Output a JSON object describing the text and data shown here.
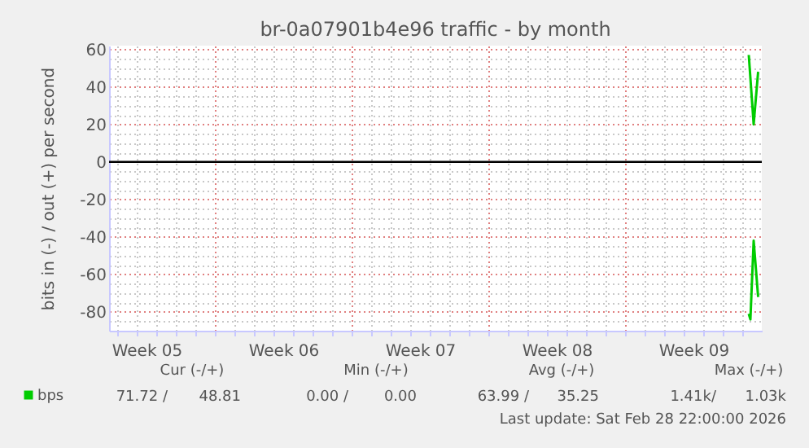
{
  "chart_data": {
    "type": "line",
    "title": "br-0a07901b4e96 traffic - by month",
    "ylabel": "bits in (-) / out (+) per second",
    "xlim": [
      "2026-01-26T12:00",
      "2026-02-28T22:00"
    ],
    "ylim": [
      -90,
      62
    ],
    "xticks": [
      {
        "value": "2026-01-26T22:00",
        "label": null
      },
      {
        "value": "2026-01-27T22:00",
        "label": null
      },
      {
        "value": "2026-01-28T10:00",
        "label": "Week 05"
      },
      {
        "value": "2026-01-28T22:00",
        "label": null
      },
      {
        "value": "2026-01-29T22:00",
        "label": null
      },
      {
        "value": "2026-01-30T22:00",
        "label": null
      },
      {
        "value": "2026-01-31T22:00",
        "label": null
      },
      {
        "value": "2026-02-01T22:00",
        "label": null
      },
      {
        "value": "2026-02-02T22:00",
        "label": null
      },
      {
        "value": "2026-02-03T22:00",
        "label": null
      },
      {
        "value": "2026-02-04T10:00",
        "label": "Week 06"
      },
      {
        "value": "2026-02-04T22:00",
        "label": null
      },
      {
        "value": "2026-02-05T22:00",
        "label": null
      },
      {
        "value": "2026-02-06T22:00",
        "label": null
      },
      {
        "value": "2026-02-07T22:00",
        "label": null
      },
      {
        "value": "2026-02-08T22:00",
        "label": null
      },
      {
        "value": "2026-02-09T22:00",
        "label": null
      },
      {
        "value": "2026-02-10T22:00",
        "label": null
      },
      {
        "value": "2026-02-11T10:00",
        "label": "Week 07"
      },
      {
        "value": "2026-02-11T22:00",
        "label": null
      },
      {
        "value": "2026-02-12T22:00",
        "label": null
      },
      {
        "value": "2026-02-13T22:00",
        "label": null
      },
      {
        "value": "2026-02-14T22:00",
        "label": null
      },
      {
        "value": "2026-02-15T22:00",
        "label": null
      },
      {
        "value": "2026-02-16T22:00",
        "label": null
      },
      {
        "value": "2026-02-17T22:00",
        "label": null
      },
      {
        "value": "2026-02-18T10:00",
        "label": "Week 08"
      },
      {
        "value": "2026-02-18T22:00",
        "label": null
      },
      {
        "value": "2026-02-19T22:00",
        "label": null
      },
      {
        "value": "2026-02-20T22:00",
        "label": null
      },
      {
        "value": "2026-02-21T22:00",
        "label": null
      },
      {
        "value": "2026-02-22T22:00",
        "label": null
      },
      {
        "value": "2026-02-23T22:00",
        "label": null
      },
      {
        "value": "2026-02-24T22:00",
        "label": null
      },
      {
        "value": "2026-02-25T10:00",
        "label": "Week 09"
      },
      {
        "value": "2026-02-25T22:00",
        "label": null
      },
      {
        "value": "2026-02-26T22:00",
        "label": null
      },
      {
        "value": "2026-02-27T22:00",
        "label": null
      }
    ],
    "yticks": [
      {
        "value": -85,
        "label": null
      },
      -80,
      {
        "value": -75,
        "label": null
      },
      {
        "value": -70,
        "label": null
      },
      {
        "value": -65,
        "label": null
      },
      -60,
      {
        "value": -55,
        "label": null
      },
      {
        "value": -50,
        "label": null
      },
      {
        "value": -45,
        "label": null
      },
      -40,
      {
        "value": -35,
        "label": null
      },
      {
        "value": -30,
        "label": null
      },
      {
        "value": -25,
        "label": null
      },
      -20,
      {
        "value": -15,
        "label": null
      },
      {
        "value": -10,
        "label": null
      },
      {
        "value": -5,
        "label": null
      },
      0,
      {
        "value": 5,
        "label": null
      },
      {
        "value": 10,
        "label": null
      },
      {
        "value": 15,
        "label": null
      },
      20,
      {
        "value": 25,
        "label": null
      },
      {
        "value": 30,
        "label": null
      },
      {
        "value": 35,
        "label": null
      },
      40,
      {
        "value": 45,
        "label": null
      },
      {
        "value": 50,
        "label": null
      },
      {
        "value": 55,
        "label": null
      },
      60
    ],
    "grid": true,
    "legend": "bottom left",
    "ref_lines": [
      {
        "axis": "y",
        "value": 0,
        "color": "#000000"
      }
    ],
    "series": [
      {
        "name": "bps",
        "color": "#00cc00",
        "x": [
          "2026-02-28T06:00",
          "2026-02-28T12:00",
          "2026-02-28T17:30"
        ],
        "values": [
          57,
          20,
          48
        ]
      },
      {
        "color": "#00cc00",
        "x": [
          "2026-02-28T06:00",
          "2026-02-28T08:00",
          "2026-02-28T12:00",
          "2026-02-28T17:30"
        ],
        "values": [
          -81,
          -84,
          -42,
          -72
        ]
      }
    ],
    "annotations": [
      "Cur (-/+)",
      "Min (-/+)",
      "Avg (-/+)",
      "Max (-/+)",
      "71.72 /",
      "48.81",
      "0.00 /",
      "0.00",
      "63.99 /",
      "35.25",
      "1.41k/",
      "1.03k",
      "Last update: Sat Feb 28 22:00:00 2026"
    ]
  }
}
